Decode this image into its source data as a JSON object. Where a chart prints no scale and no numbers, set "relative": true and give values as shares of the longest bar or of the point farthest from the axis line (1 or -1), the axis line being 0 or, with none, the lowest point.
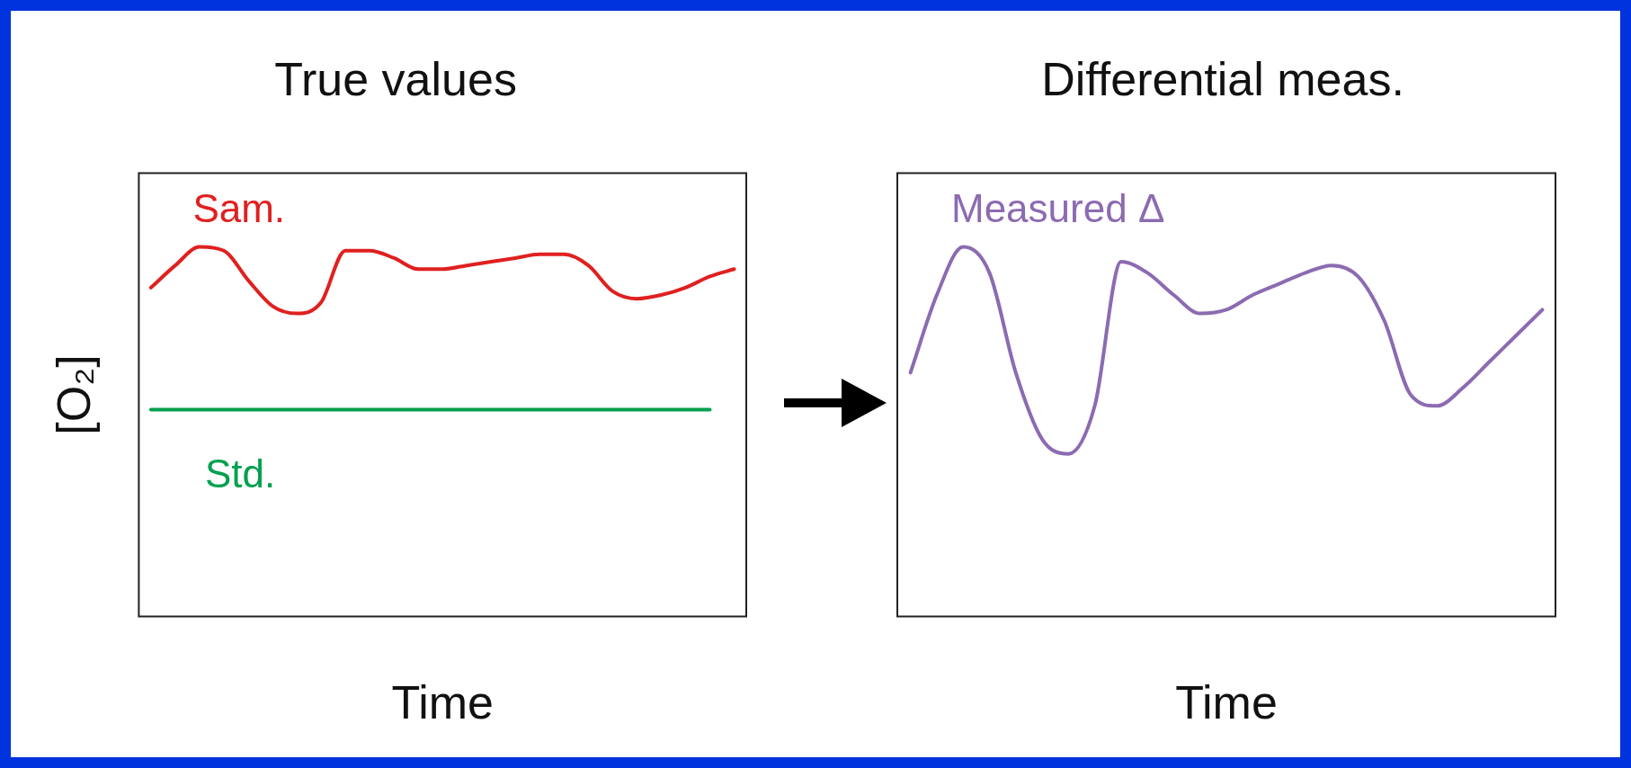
{
  "chart_data": [
    {
      "type": "line",
      "title": "True values",
      "xlabel": "Time",
      "ylabel": "[O₂]",
      "relative": true,
      "legend": false,
      "grid": false,
      "marker": "none",
      "categories": [
        null,
        null,
        null,
        null,
        null,
        null,
        null,
        null,
        null,
        null,
        null,
        null,
        null,
        null,
        null,
        null,
        null,
        null,
        null,
        null,
        null,
        null,
        null,
        null,
        null
      ],
      "series": [
        {
          "name": "Sam.",
          "color": "#e02020",
          "values": [
            0.89,
            0.95,
            1,
            0.99,
            0.91,
            0.84,
            0.82,
            0.85,
            0.99,
            0.99,
            0.97,
            0.94,
            0.94,
            0.95,
            0.96,
            0.97,
            0.98,
            0.98,
            0.95,
            0.88,
            0.86,
            0.87,
            0.89,
            0.92,
            0.94
          ]
        },
        {
          "name": "Std.",
          "color": "#00a050",
          "values": [
            0.56,
            0.56,
            0.56,
            0.56,
            0.56,
            0.56,
            0.56,
            0.56,
            0.56,
            0.56,
            0.56,
            0.56,
            0.56,
            0.56,
            0.56,
            0.56,
            0.56,
            0.56,
            0.56,
            0.56,
            0.56,
            0.56,
            0.56,
            0.56,
            null
          ]
        }
      ]
    },
    {
      "type": "line",
      "title": "Differential meas.",
      "xlabel": "Time",
      "relative": true,
      "legend": false,
      "grid": false,
      "marker": "none",
      "categories": [
        null,
        null,
        null,
        null,
        null,
        null,
        null,
        null,
        null,
        null,
        null,
        null,
        null,
        null,
        null,
        null,
        null,
        null,
        null,
        null,
        null,
        null,
        null,
        null,
        null
      ],
      "series": [
        {
          "name": "Measured Δ",
          "color": "#8c6bb1",
          "values": [
            0.66,
            0.87,
            1,
            0.93,
            0.66,
            0.48,
            0.44,
            0.57,
            0.96,
            0.93,
            0.87,
            0.82,
            0.83,
            0.87,
            0.9,
            0.93,
            0.95,
            0.92,
            0.8,
            0.6,
            0.57,
            0.62,
            0.69,
            0.76,
            0.83
          ]
        }
      ]
    }
  ]
}
